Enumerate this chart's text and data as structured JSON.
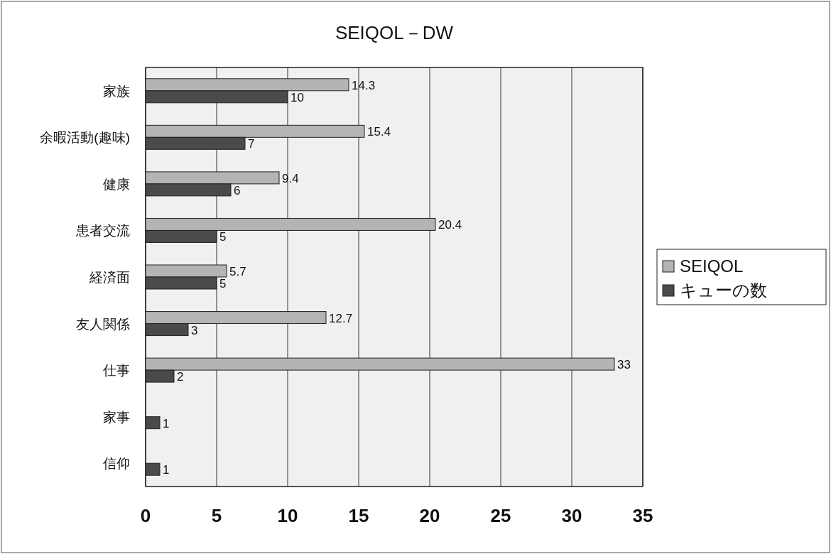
{
  "chart_data": {
    "type": "bar",
    "orientation": "horizontal",
    "title": "SEIQOL－DW",
    "categories": [
      "家族",
      "余暇活動(趣味)",
      "健康",
      "患者交流",
      "経済面",
      "友人関係",
      "仕事",
      "家事",
      "信仰"
    ],
    "series": [
      {
        "name": "SEIQOL",
        "color": "#b4b4b4",
        "values": [
          14.3,
          15.4,
          9.4,
          20.4,
          5.7,
          12.7,
          33,
          null,
          null
        ]
      },
      {
        "name": "キューの数",
        "color": "#4a4a4a",
        "values": [
          10,
          7,
          6,
          5,
          5,
          3,
          2,
          1,
          1
        ]
      }
    ],
    "xlim": [
      0,
      35
    ],
    "xticks": [
      0,
      5,
      10,
      15,
      20,
      25,
      30,
      35
    ],
    "grid": "x",
    "legend": "right",
    "data_labels": true
  }
}
